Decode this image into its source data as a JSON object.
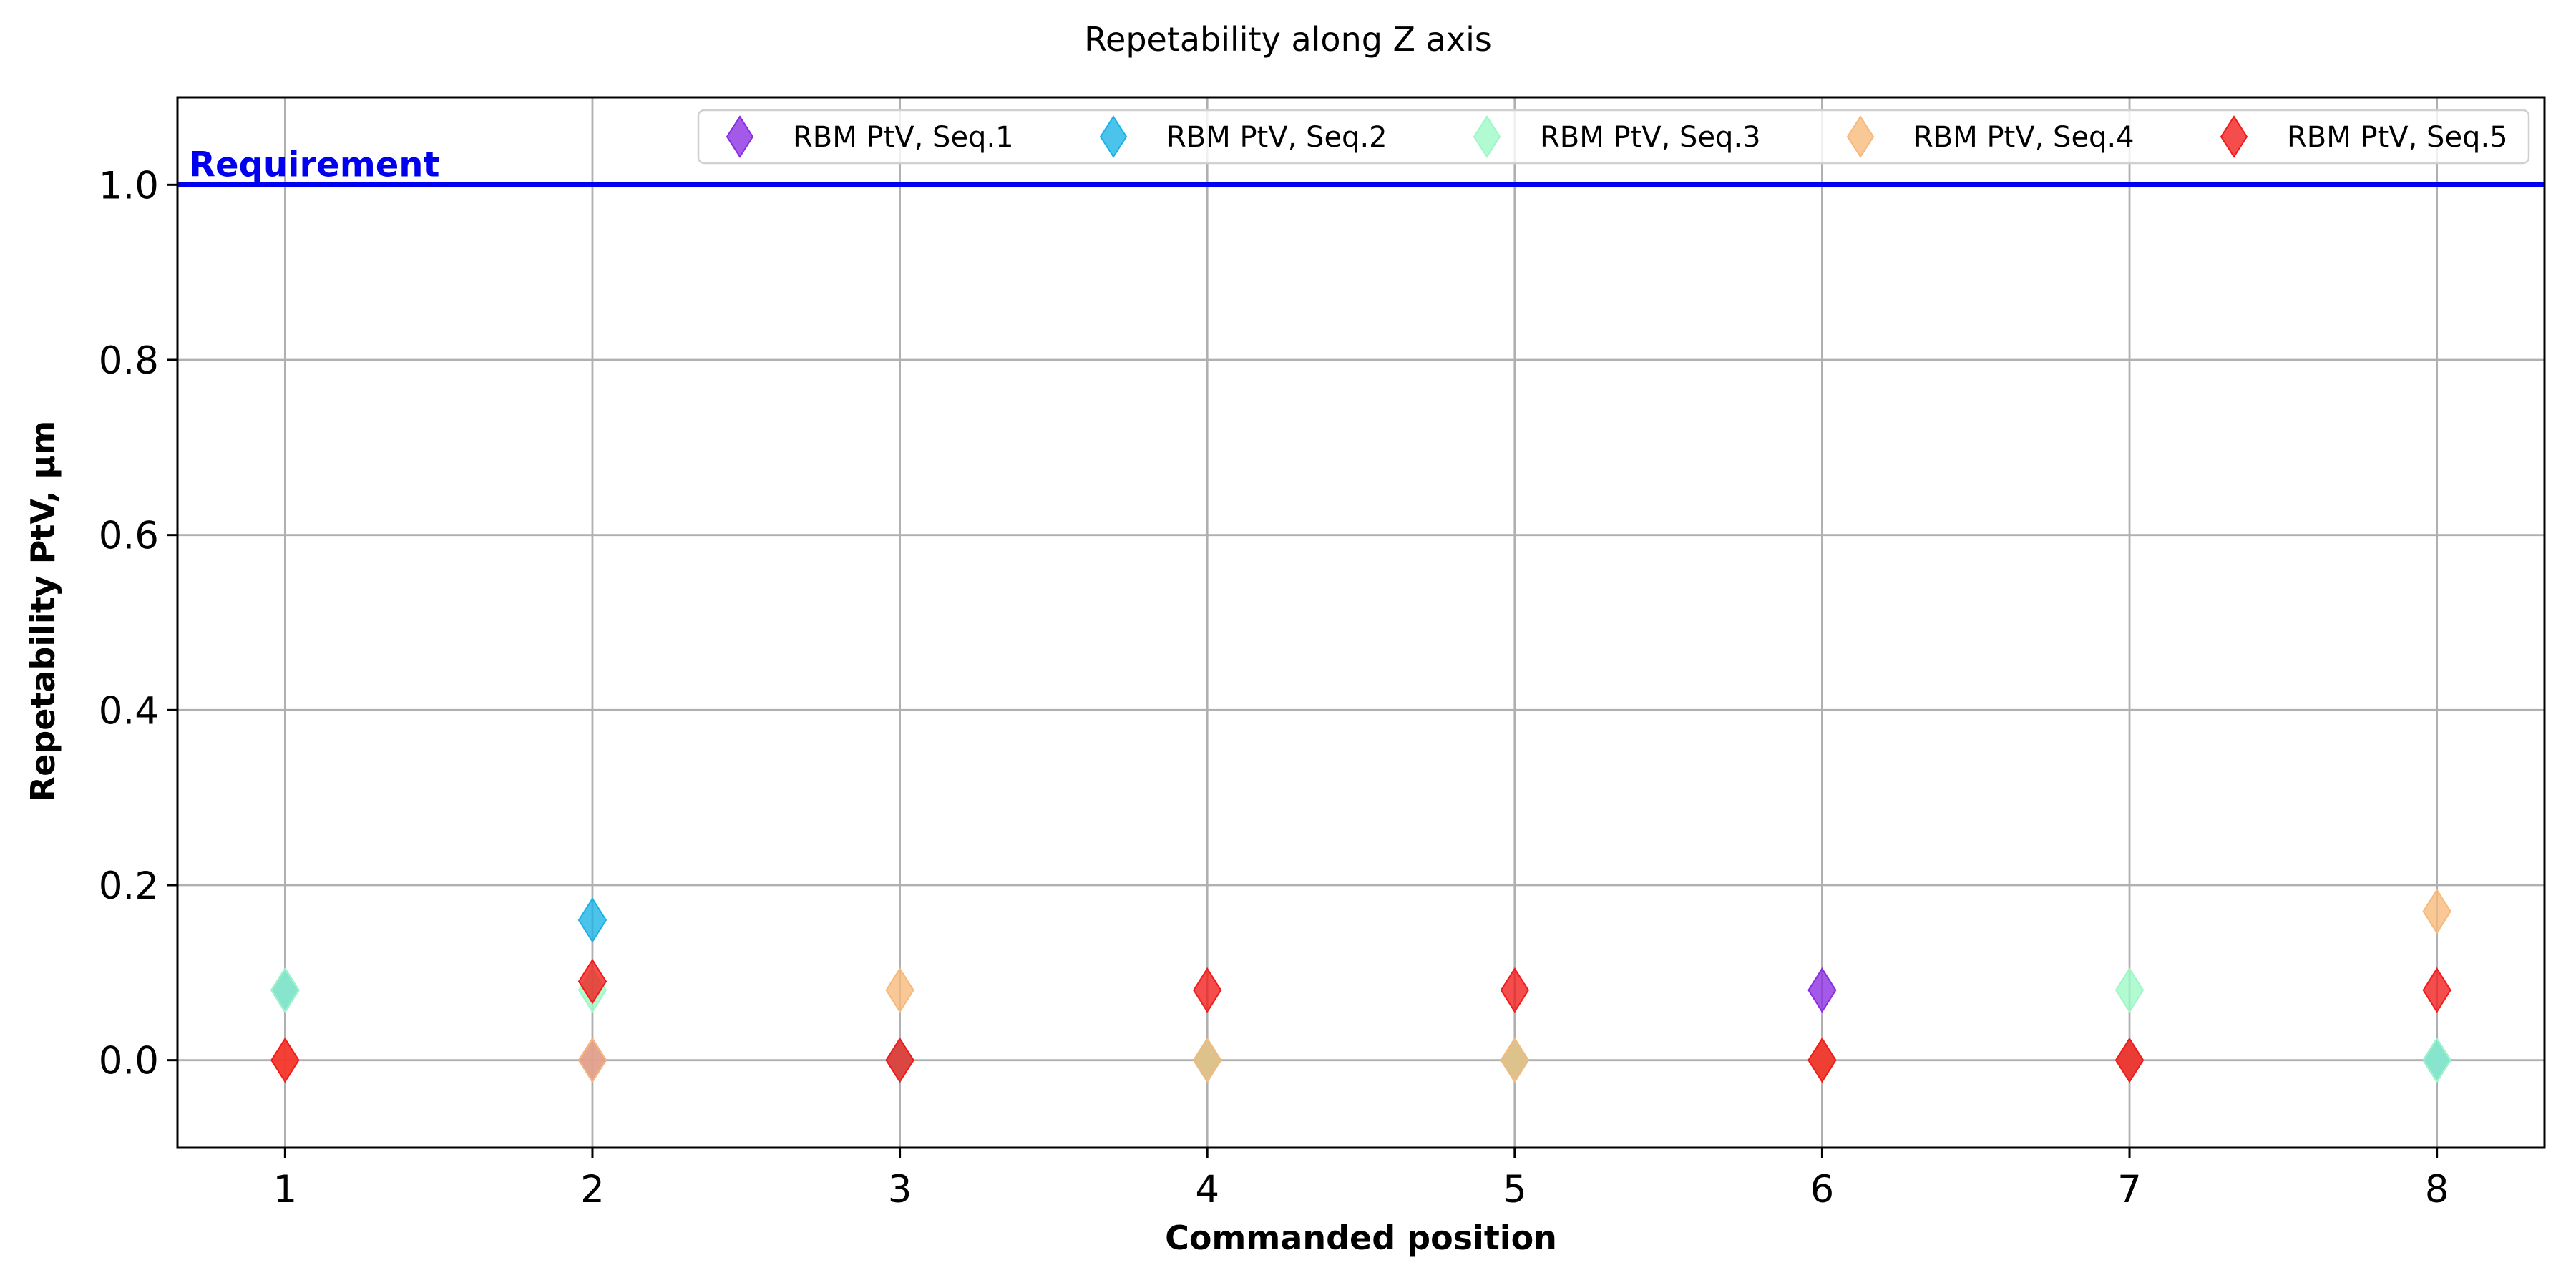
{
  "chart_data": {
    "type": "scatter",
    "title": "Repetability along Z axis",
    "xlabel": "Commanded position",
    "ylabel": "Repetability PtV, µm",
    "xlim": [
      0.65,
      8.35
    ],
    "ylim": [
      -0.1,
      1.1
    ],
    "xticks": [
      1,
      2,
      3,
      4,
      5,
      6,
      7,
      8
    ],
    "yticks": [
      0.0,
      0.2,
      0.4,
      0.6,
      0.8,
      1.0
    ],
    "ytick_labels": [
      "0.0",
      "0.2",
      "0.4",
      "0.6",
      "0.8",
      "1.0"
    ],
    "grid": true,
    "legend": "top-right",
    "marker": "thin-diamond",
    "requirement": {
      "y": 1.0,
      "label": "Requirement",
      "color": "#0000ee"
    },
    "x": [
      1,
      2,
      3,
      4,
      5,
      6,
      7,
      8
    ],
    "series": [
      {
        "name": "RBM PtV, Seq.1",
        "color": "#8a2be2",
        "values": [
          0.08,
          0.0,
          0.0,
          0.0,
          0.0,
          0.08,
          0.0,
          0.0
        ]
      },
      {
        "name": "RBM PtV, Seq.2",
        "color": "#1ab2e6",
        "values": [
          0.08,
          0.16,
          0.0,
          0.0,
          0.0,
          0.0,
          0.0,
          0.0
        ]
      },
      {
        "name": "RBM PtV, Seq.3",
        "color": "#9cf8c4",
        "values": [
          0.08,
          0.08,
          0.0,
          0.0,
          0.0,
          0.0,
          0.08,
          0.0
        ]
      },
      {
        "name": "RBM PtV, Seq.4",
        "color": "#f6b97a",
        "values": [
          0.0,
          0.0,
          0.08,
          0.0,
          0.0,
          0.0,
          0.0,
          0.17
        ]
      },
      {
        "name": "RBM PtV, Seq.5",
        "color": "#f21a1a",
        "values": [
          0.0,
          0.09,
          0.0,
          0.08,
          0.08,
          0.0,
          0.0,
          0.08
        ]
      }
    ]
  }
}
